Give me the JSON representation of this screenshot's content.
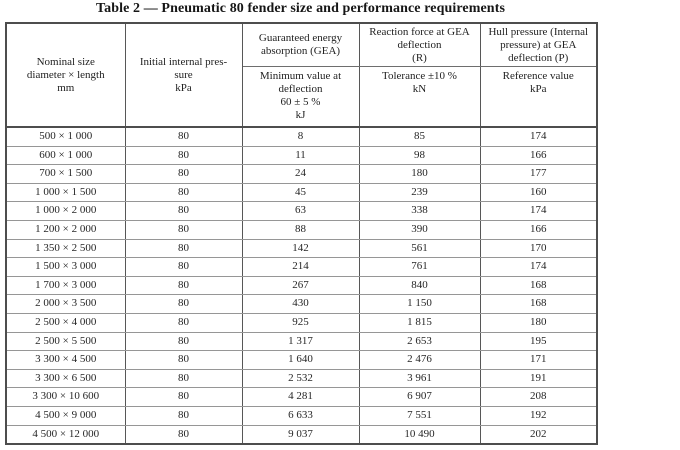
{
  "title": "Table 2 — Pneumatic 80 fender size and performance requirements",
  "table": {
    "header": {
      "nominal_size": "Nominal size\ndiameter × length\nmm",
      "initial_pressure": "Initial internal pres-\nsure\nkPa",
      "gea_top": "Guaranteed energy\nabsorption (GEA)",
      "reaction_top": "Reaction force at GEA\ndeflection\n(R)",
      "hull_top": "Hull pressure (Internal\npressure) at GEA\ndeflection (P)",
      "gea_sub": "Minimum value at\ndeflection\n60 ± 5 %\nkJ",
      "reaction_sub": "Tolerance ±10 %\nkN",
      "hull_sub": "Reference value\nkPa"
    },
    "rows": [
      [
        "500 × 1 000",
        "80",
        "8",
        "85",
        "174"
      ],
      [
        "600 × 1 000",
        "80",
        "11",
        "98",
        "166"
      ],
      [
        "700 × 1 500",
        "80",
        "24",
        "180",
        "177"
      ],
      [
        "1 000 × 1 500",
        "80",
        "45",
        "239",
        "160"
      ],
      [
        "1 000 × 2 000",
        "80",
        "63",
        "338",
        "174"
      ],
      [
        "1 200 × 2 000",
        "80",
        "88",
        "390",
        "166"
      ],
      [
        "1 350 × 2 500",
        "80",
        "142",
        "561",
        "170"
      ],
      [
        "1 500 × 3 000",
        "80",
        "214",
        "761",
        "174"
      ],
      [
        "1 700 × 3 000",
        "80",
        "267",
        "840",
        "168"
      ],
      [
        "2 000 × 3 500",
        "80",
        "430",
        "1 150",
        "168"
      ],
      [
        "2 500 × 4 000",
        "80",
        "925",
        "1 815",
        "180"
      ],
      [
        "2 500 × 5 500",
        "80",
        "1 317",
        "2 653",
        "195"
      ],
      [
        "3 300 × 4 500",
        "80",
        "1 640",
        "2 476",
        "171"
      ],
      [
        "3 300 × 6 500",
        "80",
        "2 532",
        "3 961",
        "191"
      ],
      [
        "3 300 × 10 600",
        "80",
        "4 281",
        "6 907",
        "208"
      ],
      [
        "4 500 × 9 000",
        "80",
        "6 633",
        "7 551",
        "192"
      ],
      [
        "4 500 × 12 000",
        "80",
        "9 037",
        "10 490",
        "202"
      ]
    ]
  },
  "colors": {
    "text": "#1f1f1f",
    "outer_border": "#4d4d4d",
    "inner_vertical_border": "#575757",
    "row_border": "#969696",
    "background": "#ffffff"
  }
}
